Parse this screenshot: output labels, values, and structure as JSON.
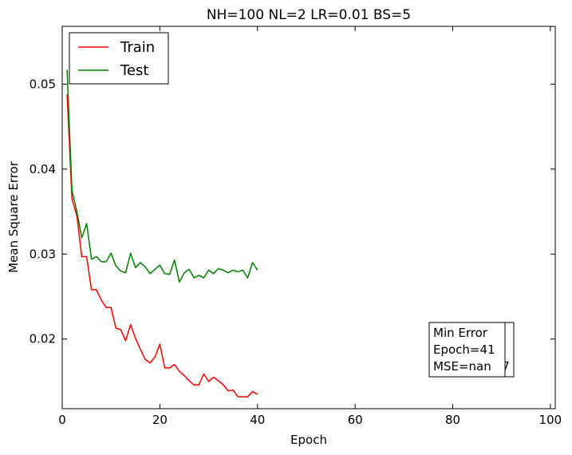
{
  "chart_data": {
    "type": "line",
    "title": "NH=100 NL=2 LR=0.01 BS=5",
    "xlabel": "Epoch",
    "ylabel": "Mean Square Error",
    "xlim": [
      0,
      101
    ],
    "ylim": [
      0.0118,
      0.0568
    ],
    "x_ticks": [
      0,
      20,
      40,
      60,
      80,
      100
    ],
    "y_ticks": [
      0.02,
      0.03,
      0.04,
      0.05
    ],
    "grid": false,
    "legend_position": "top-left",
    "series": [
      {
        "name": "Train",
        "color": "#ff0000",
        "x": [
          1,
          2,
          3,
          4,
          5,
          6,
          7,
          8,
          9,
          10,
          11,
          12,
          13,
          14,
          15,
          16,
          17,
          18,
          19,
          20,
          21,
          22,
          23,
          24,
          25,
          26,
          27,
          28,
          29,
          30,
          31,
          32,
          33,
          34,
          35,
          36,
          37,
          38,
          39,
          40
        ],
        "values": [
          0.0488,
          0.0365,
          0.0345,
          0.0297,
          0.0297,
          0.0258,
          0.0258,
          0.0246,
          0.0237,
          0.0237,
          0.0213,
          0.0211,
          0.0198,
          0.0217,
          0.0201,
          0.0188,
          0.0176,
          0.0172,
          0.0179,
          0.0194,
          0.0166,
          0.0166,
          0.017,
          0.0162,
          0.0157,
          0.0151,
          0.0146,
          0.0146,
          0.0159,
          0.015,
          0.0155,
          0.0151,
          0.0146,
          0.0139,
          0.014,
          0.0132,
          0.0132,
          0.0132,
          0.0138,
          0.0135
        ]
      },
      {
        "name": "Test",
        "color": "#008000",
        "x": [
          1,
          2,
          3,
          4,
          5,
          6,
          7,
          8,
          9,
          10,
          11,
          12,
          13,
          14,
          15,
          16,
          17,
          18,
          19,
          20,
          21,
          22,
          23,
          24,
          25,
          26,
          27,
          28,
          29,
          30,
          31,
          32,
          33,
          34,
          35,
          36,
          37,
          38,
          39,
          40
        ],
        "values": [
          0.0517,
          0.0375,
          0.035,
          0.0319,
          0.0336,
          0.0294,
          0.0297,
          0.0291,
          0.0291,
          0.0301,
          0.0286,
          0.028,
          0.0278,
          0.0301,
          0.0284,
          0.029,
          0.0285,
          0.0277,
          0.0282,
          0.0287,
          0.0277,
          0.0276,
          0.0293,
          0.0267,
          0.0278,
          0.0282,
          0.0272,
          0.0275,
          0.0272,
          0.0281,
          0.0277,
          0.0283,
          0.0281,
          0.0278,
          0.0281,
          0.0279,
          0.0281,
          0.0272,
          0.029,
          0.0281
        ]
      }
    ],
    "annotation": {
      "lines": [
        "Min Error",
        "Epoch=41",
        "MSE=nan"
      ],
      "overflow_char": "7"
    }
  }
}
